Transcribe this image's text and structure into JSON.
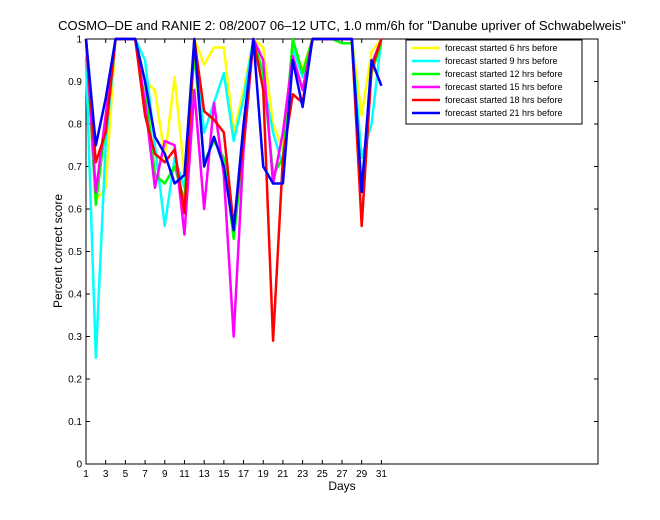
{
  "chart_data": {
    "type": "line",
    "title": "COSMO–DE and RANIE 2: 08/2007 06–12 UTC, 1.0 mm/6h for \"Danube upriver of Schwabelweis\"",
    "xlabel": "Days",
    "ylabel": "Percent correct score",
    "xlim": [
      1,
      53
    ],
    "ylim": [
      0,
      1
    ],
    "xticks": [
      1,
      3,
      5,
      7,
      9,
      11,
      13,
      15,
      17,
      19,
      21,
      23,
      25,
      27,
      29,
      31
    ],
    "yticks": [
      0,
      0.1,
      0.2,
      0.3,
      0.4,
      0.5,
      0.6,
      0.7,
      0.8,
      0.9,
      1
    ],
    "legend_position": "top-right",
    "x": [
      1,
      2,
      3,
      4,
      5,
      6,
      7,
      8,
      9,
      10,
      11,
      12,
      13,
      14,
      15,
      16,
      17,
      18,
      19,
      20,
      21,
      22,
      23,
      24,
      25,
      26,
      27,
      28,
      29,
      30,
      31
    ],
    "series": [
      {
        "name": "forecast started 6 hrs before",
        "color": "#ffff00",
        "values": [
          1.0,
          0.62,
          0.65,
          1.0,
          1.0,
          1.0,
          0.9,
          0.88,
          0.72,
          0.91,
          0.68,
          1.0,
          0.94,
          0.98,
          0.98,
          0.78,
          0.88,
          1.0,
          0.98,
          0.8,
          0.74,
          0.98,
          0.93,
          1.0,
          1.0,
          1.0,
          1.0,
          1.0,
          0.82,
          0.97,
          1.0
        ]
      },
      {
        "name": "forecast started 9 hrs before",
        "color": "#00ffff",
        "values": [
          0.95,
          0.25,
          0.75,
          1.0,
          1.0,
          1.0,
          0.95,
          0.75,
          0.56,
          0.72,
          0.65,
          0.98,
          0.78,
          0.85,
          0.92,
          0.76,
          0.86,
          1.0,
          0.9,
          0.78,
          0.7,
          0.98,
          0.91,
          1.0,
          1.0,
          1.0,
          1.0,
          1.0,
          0.72,
          0.8,
          1.0
        ]
      },
      {
        "name": "forecast started 12 hrs before",
        "color": "#00ff00",
        "values": [
          1.0,
          0.61,
          0.8,
          1.0,
          1.0,
          1.0,
          0.9,
          0.68,
          0.66,
          0.7,
          0.62,
          0.97,
          0.71,
          0.76,
          0.72,
          0.53,
          0.74,
          1.0,
          0.92,
          0.68,
          0.72,
          1.0,
          0.92,
          1.0,
          1.0,
          1.0,
          0.99,
          0.99,
          0.65,
          0.92,
          0.99
        ]
      },
      {
        "name": "forecast started 15 hrs before",
        "color": "#ff00ff",
        "values": [
          1.0,
          0.64,
          0.82,
          1.0,
          1.0,
          1.0,
          0.85,
          0.65,
          0.76,
          0.75,
          0.54,
          0.88,
          0.6,
          0.85,
          0.68,
          0.3,
          0.74,
          1.0,
          0.95,
          0.66,
          0.78,
          0.96,
          0.88,
          1.0,
          1.0,
          1.0,
          1.0,
          1.0,
          0.64,
          0.94,
          1.0
        ]
      },
      {
        "name": "forecast started 18 hrs before",
        "color": "#ff0000",
        "values": [
          1.0,
          0.71,
          0.78,
          1.0,
          1.0,
          1.0,
          0.82,
          0.73,
          0.71,
          0.74,
          0.59,
          1.0,
          0.83,
          0.81,
          0.78,
          0.56,
          0.76,
          1.0,
          0.88,
          0.29,
          0.72,
          0.87,
          0.85,
          1.0,
          1.0,
          1.0,
          1.0,
          1.0,
          0.56,
          0.93,
          1.0
        ]
      },
      {
        "name": "forecast started 21 hrs before",
        "color": "#0000ff",
        "values": [
          1.0,
          0.75,
          0.86,
          1.0,
          1.0,
          1.0,
          0.9,
          0.77,
          0.73,
          0.66,
          0.68,
          1.0,
          0.7,
          0.77,
          0.7,
          0.55,
          0.8,
          1.0,
          0.7,
          0.66,
          0.66,
          0.95,
          0.84,
          1.0,
          1.0,
          1.0,
          1.0,
          1.0,
          0.64,
          0.95,
          0.89
        ]
      }
    ]
  }
}
